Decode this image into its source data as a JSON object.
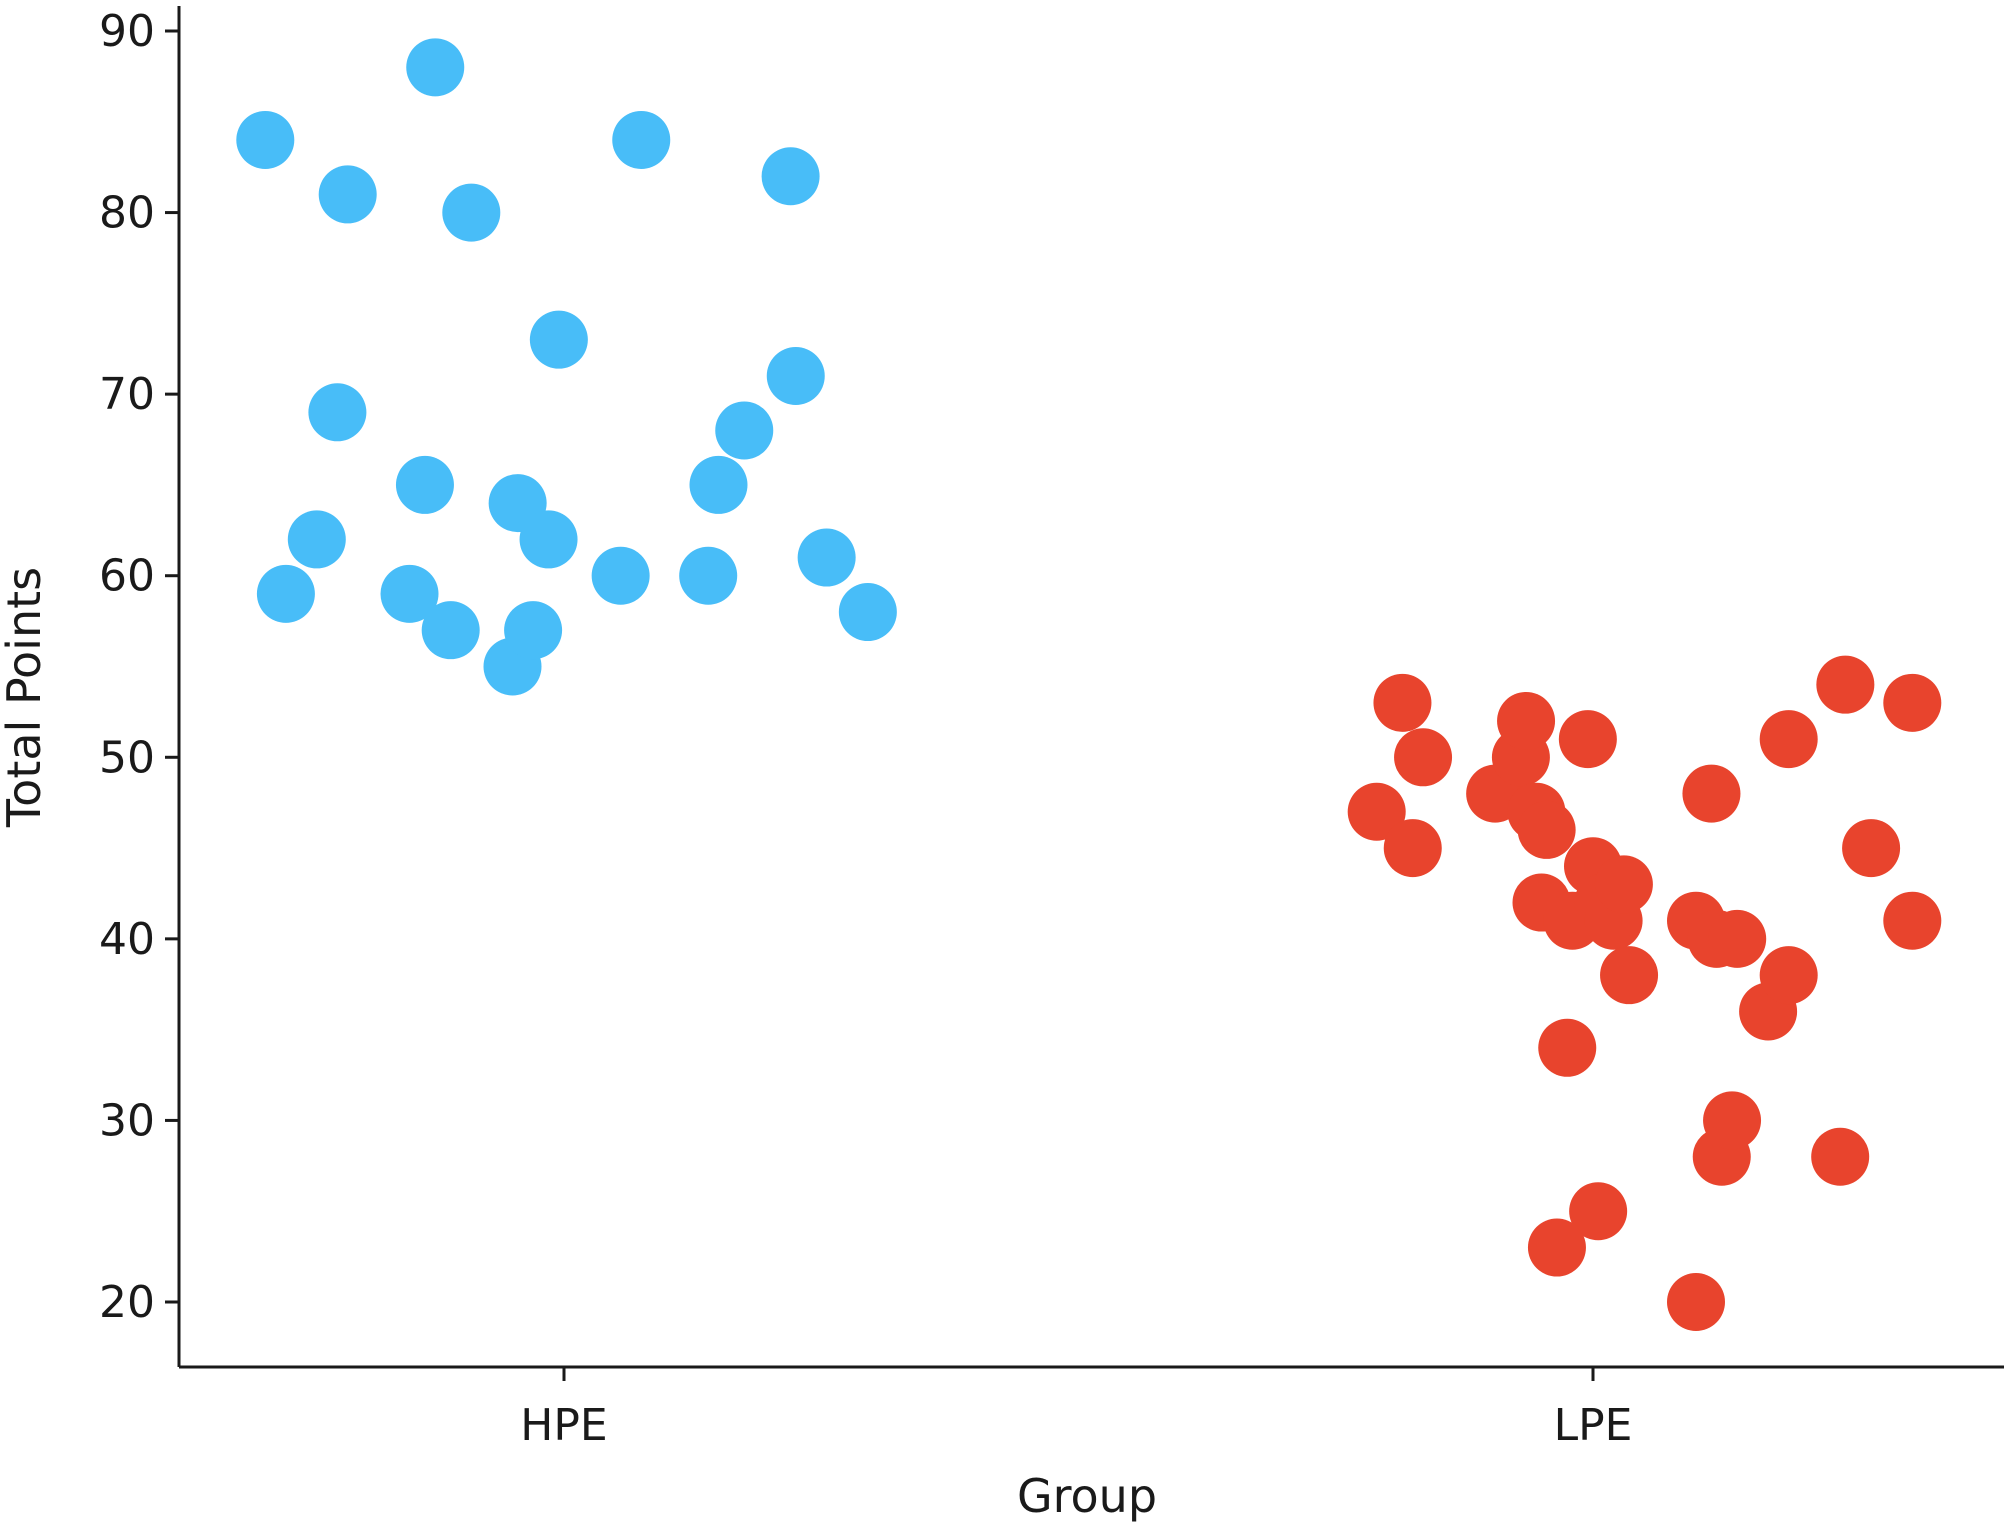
{
  "chart_data": {
    "type": "scatter",
    "title": "",
    "xlabel": "Group",
    "ylabel": "Total Points",
    "ylim": [
      16.5,
      91
    ],
    "yticks": [
      20,
      30,
      40,
      50,
      60,
      70,
      80,
      90
    ],
    "ytick_labels": [
      "20",
      "30",
      "40",
      "50",
      "60",
      "70",
      "80",
      "90"
    ],
    "categories": [
      "HPE",
      "LPE"
    ],
    "grid": false,
    "legend": "none",
    "series": [
      {
        "category": "HPE",
        "color": "#48bdf8",
        "points": [
          {
            "x": -0.29,
            "y": 84
          },
          {
            "x": -0.27,
            "y": 59
          },
          {
            "x": -0.24,
            "y": 62
          },
          {
            "x": -0.22,
            "y": 69
          },
          {
            "x": -0.21,
            "y": 81
          },
          {
            "x": -0.15,
            "y": 59
          },
          {
            "x": -0.135,
            "y": 65
          },
          {
            "x": -0.125,
            "y": 88
          },
          {
            "x": -0.11,
            "y": 57
          },
          {
            "x": -0.09,
            "y": 80
          },
          {
            "x": -0.05,
            "y": 55
          },
          {
            "x": -0.045,
            "y": 64
          },
          {
            "x": -0.03,
            "y": 57
          },
          {
            "x": -0.015,
            "y": 62
          },
          {
            "x": -0.005,
            "y": 73
          },
          {
            "x": 0.055,
            "y": 60
          },
          {
            "x": 0.075,
            "y": 84
          },
          {
            "x": 0.14,
            "y": 60
          },
          {
            "x": 0.15,
            "y": 65
          },
          {
            "x": 0.175,
            "y": 68
          },
          {
            "x": 0.22,
            "y": 82
          },
          {
            "x": 0.225,
            "y": 71
          },
          {
            "x": 0.255,
            "y": 61
          },
          {
            "x": 0.295,
            "y": 58
          }
        ]
      },
      {
        "category": "LPE",
        "color": "#e8442d",
        "points": [
          {
            "x": -0.21,
            "y": 47
          },
          {
            "x": -0.185,
            "y": 53
          },
          {
            "x": -0.175,
            "y": 45
          },
          {
            "x": -0.165,
            "y": 50
          },
          {
            "x": -0.095,
            "y": 48
          },
          {
            "x": -0.07,
            "y": 50
          },
          {
            "x": -0.065,
            "y": 52
          },
          {
            "x": -0.055,
            "y": 47
          },
          {
            "x": -0.05,
            "y": 42
          },
          {
            "x": -0.045,
            "y": 46
          },
          {
            "x": -0.035,
            "y": 23
          },
          {
            "x": -0.025,
            "y": 34
          },
          {
            "x": -0.02,
            "y": 41
          },
          {
            "x": -0.005,
            "y": 51
          },
          {
            "x": 0.0,
            "y": 44
          },
          {
            "x": 0.005,
            "y": 25
          },
          {
            "x": 0.01,
            "y": 42
          },
          {
            "x": 0.02,
            "y": 41
          },
          {
            "x": 0.03,
            "y": 43
          },
          {
            "x": 0.035,
            "y": 38
          },
          {
            "x": 0.1,
            "y": 20
          },
          {
            "x": 0.1,
            "y": 41
          },
          {
            "x": 0.115,
            "y": 48
          },
          {
            "x": 0.12,
            "y": 40
          },
          {
            "x": 0.125,
            "y": 28
          },
          {
            "x": 0.135,
            "y": 30
          },
          {
            "x": 0.14,
            "y": 40
          },
          {
            "x": 0.17,
            "y": 36
          },
          {
            "x": 0.19,
            "y": 38
          },
          {
            "x": 0.19,
            "y": 51
          },
          {
            "x": 0.24,
            "y": 28
          },
          {
            "x": 0.245,
            "y": 54
          },
          {
            "x": 0.27,
            "y": 45
          },
          {
            "x": 0.31,
            "y": 53
          },
          {
            "x": 0.31,
            "y": 41
          }
        ]
      }
    ]
  }
}
